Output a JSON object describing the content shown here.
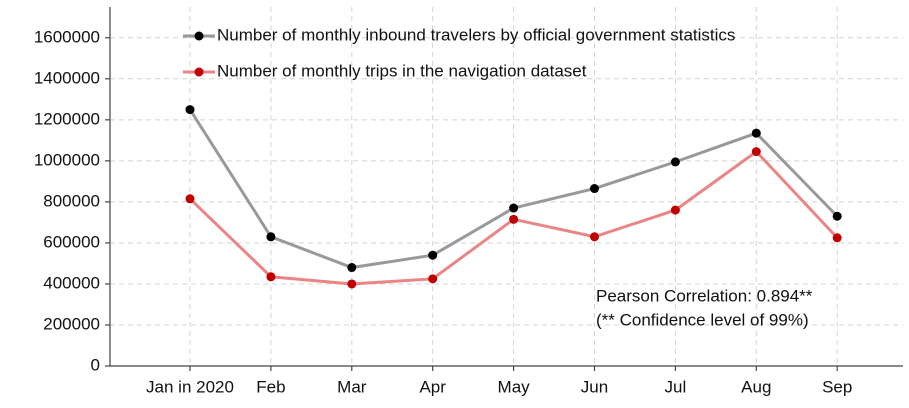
{
  "chart_data": {
    "type": "line",
    "categories": [
      "Jan in 2020",
      "Feb",
      "Mar",
      "Apr",
      "May",
      "Jun",
      "Jul",
      "Aug",
      "Sep"
    ],
    "series": [
      {
        "name": "Number of monthly inbound travelers by official government statistics",
        "color": "#999999",
        "marker_color": "#000000",
        "values": [
          1250000,
          630000,
          480000,
          540000,
          770000,
          865000,
          995000,
          1135000,
          730000
        ]
      },
      {
        "name": "Number of monthly trips in the navigation dataset",
        "color": "#ea8585",
        "marker_color": "#c00000",
        "values": [
          815000,
          435000,
          400000,
          425000,
          715000,
          630000,
          760000,
          1045000,
          625000
        ]
      }
    ],
    "ylim": [
      0,
      1750000
    ],
    "yticks": [
      0,
      200000,
      400000,
      600000,
      800000,
      1000000,
      1200000,
      1400000,
      1600000
    ],
    "grid": true,
    "annotations": [
      "Pearson Correlation: 0.894**",
      "(** Confidence level of 99%)"
    ]
  }
}
